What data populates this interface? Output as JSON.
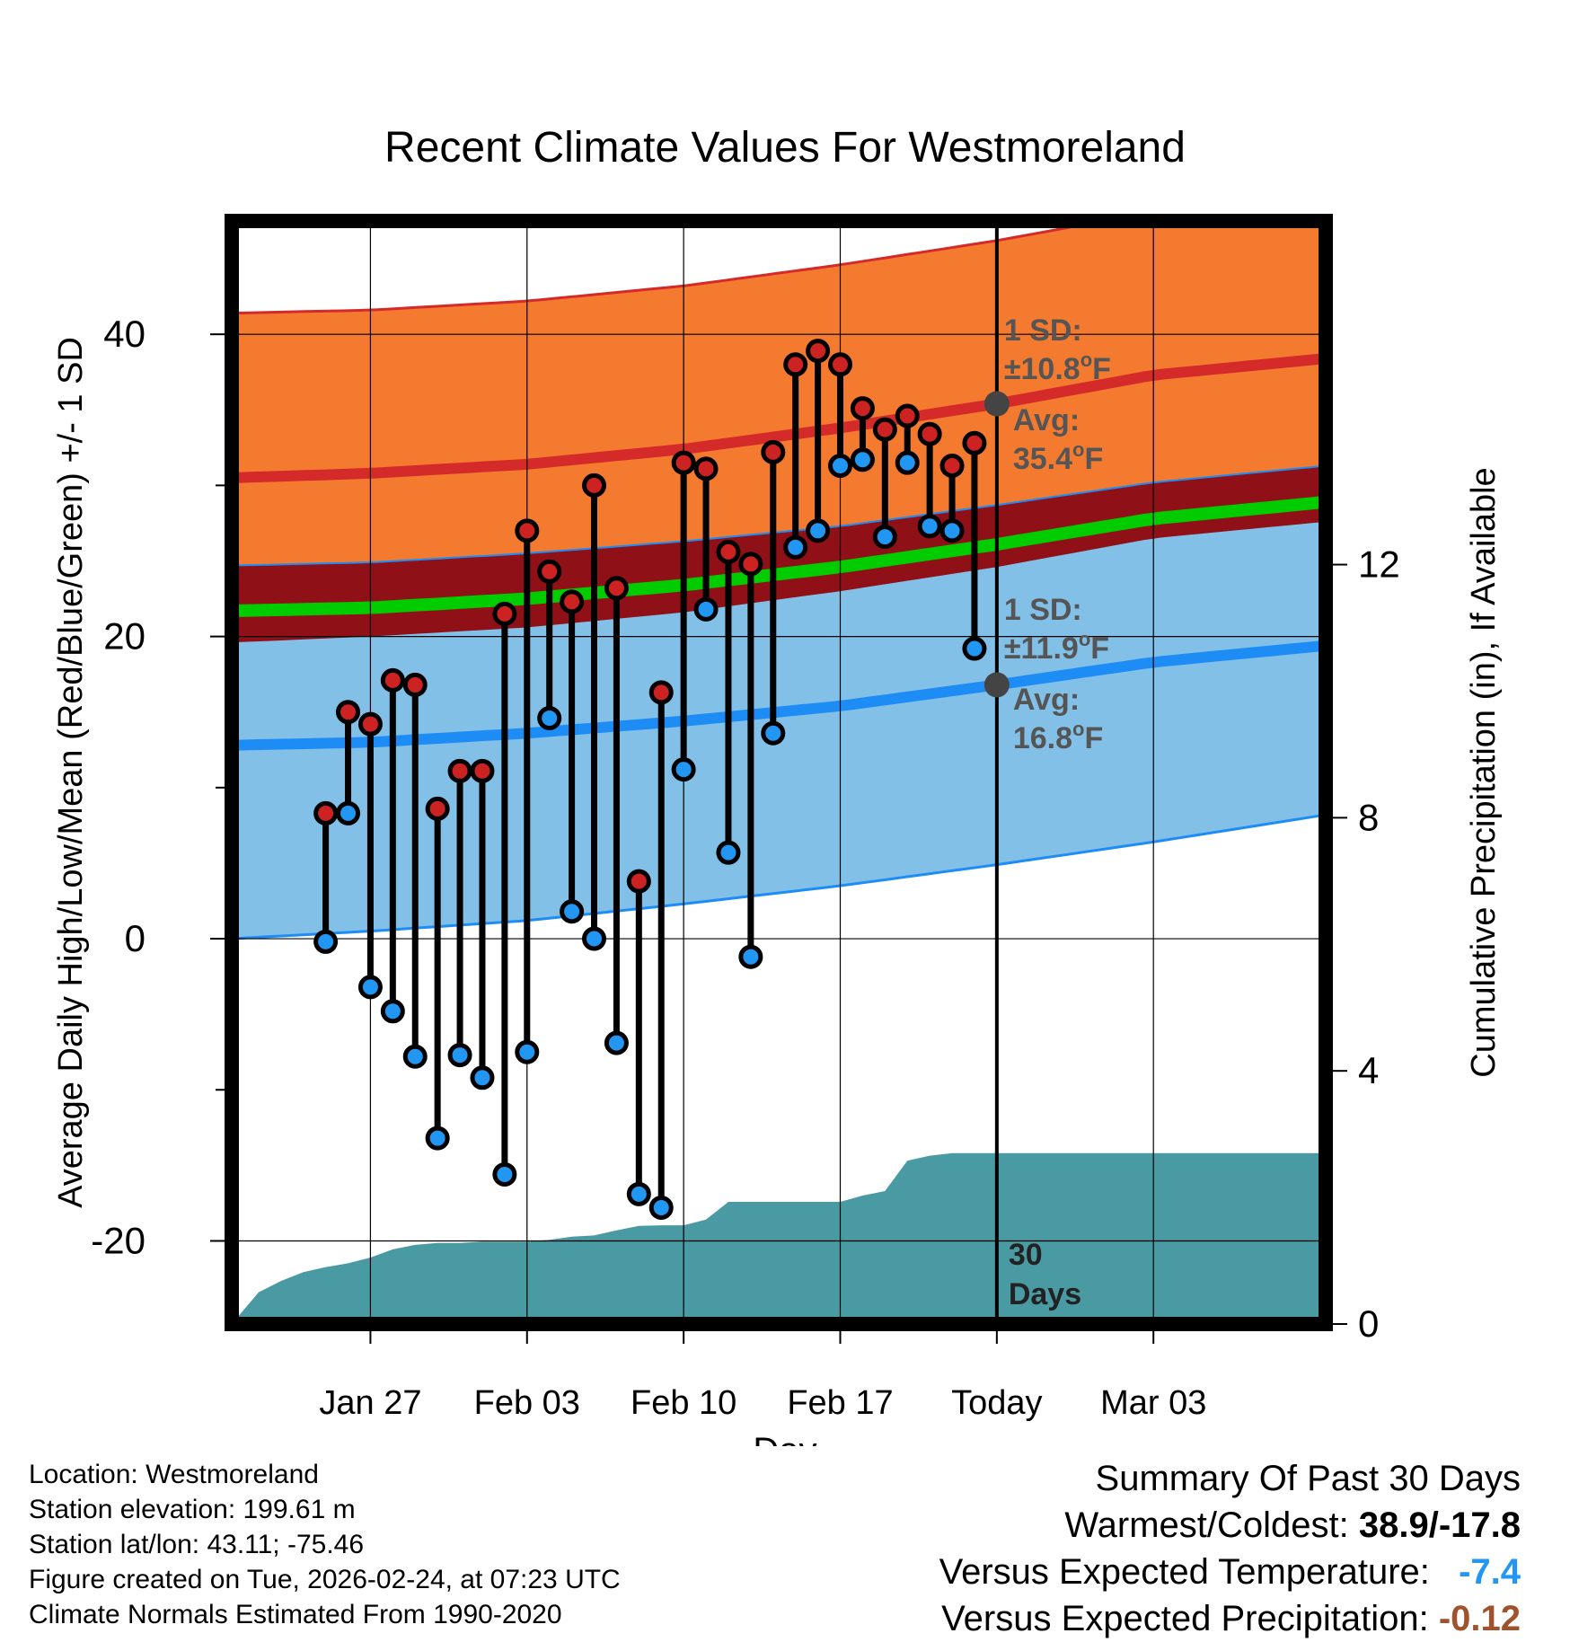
{
  "chart_data": {
    "type": "line",
    "title": "Recent Climate Values For Westmoreland",
    "xlabel": "Day",
    "ylabel_left": "Average Daily High/Low/Mean (Red/Blue/Green) +/- 1 SD",
    "ylabel_right": "Cumulative Precipitation (in), If Available",
    "ylim_left": [
      -25.5,
      47.5
    ],
    "ylim_right": [
      0,
      17.43
    ],
    "x_range_days": [
      -34.2,
      14.7
    ],
    "x_ticks": [
      {
        "day": -28,
        "label": "Jan 27"
      },
      {
        "day": -21,
        "label": "Feb 03"
      },
      {
        "day": -14,
        "label": "Feb 10"
      },
      {
        "day": -7,
        "label": "Feb 17"
      },
      {
        "day": 0,
        "label": "Today"
      },
      {
        "day": 7,
        "label": "Mar 03"
      }
    ],
    "y_ticks_left": [
      {
        "value": 40,
        "label": "40"
      },
      {
        "value": 20,
        "label": "20"
      },
      {
        "value": 0,
        "label": "0"
      },
      {
        "value": -20,
        "label": "-20"
      }
    ],
    "y_minor_ticks_left": [
      30,
      10,
      -10
    ],
    "y_ticks_right": [
      {
        "value": 0,
        "label": "0"
      },
      {
        "value": 4,
        "label": "4"
      },
      {
        "value": 8,
        "label": "8"
      },
      {
        "value": 12,
        "label": "12"
      }
    ],
    "normals": {
      "day": [
        -34.2,
        -28,
        -21,
        -14,
        -7,
        0,
        7,
        14.7
      ],
      "high_avg": [
        30.5,
        30.8,
        31.4,
        32.4,
        33.8,
        35.4,
        37.3,
        38.4
      ],
      "high_sd_upper": [
        41.4,
        41.6,
        42.2,
        43.2,
        44.6,
        46.2,
        48.1,
        49.2
      ],
      "high_sd_lower": [
        19.6,
        20.0,
        20.6,
        21.6,
        23.0,
        24.6,
        26.5,
        27.6
      ],
      "low_avg": [
        12.8,
        13.0,
        13.6,
        14.4,
        15.4,
        16.8,
        18.3,
        19.4
      ],
      "low_sd_upper": [
        24.7,
        24.9,
        25.5,
        26.3,
        27.3,
        28.7,
        30.2,
        31.3
      ],
      "low_sd_lower": [
        0.0,
        0.5,
        1.2,
        2.3,
        3.5,
        4.9,
        6.4,
        8.2
      ],
      "mean_avg": [
        21.7,
        21.9,
        22.5,
        23.4,
        24.6,
        26.1,
        27.8,
        28.9
      ]
    },
    "series": [
      {
        "name": "Daily High",
        "color": "#cc2222",
        "day": [
          -30,
          -29,
          -28,
          -27,
          -26,
          -25,
          -24,
          -23,
          -22,
          -21,
          -20,
          -19,
          -18,
          -17,
          -16,
          -15,
          -14,
          -13,
          -12,
          -11,
          -10,
          -9,
          -8,
          -7,
          -6,
          -5,
          -4,
          -3,
          -2,
          -1
        ],
        "values": [
          8.3,
          15.0,
          14.2,
          17.1,
          16.8,
          8.6,
          11.1,
          11.1,
          21.5,
          27.0,
          24.3,
          22.3,
          30.0,
          23.2,
          3.8,
          16.3,
          31.5,
          31.1,
          25.6,
          24.8,
          32.2,
          38.0,
          38.9,
          38.0,
          35.1,
          33.7,
          34.6,
          33.4,
          31.3,
          32.8
        ]
      },
      {
        "name": "Daily Low",
        "color": "#2196f3",
        "day": [
          -30,
          -29,
          -28,
          -27,
          -26,
          -25,
          -24,
          -23,
          -22,
          -21,
          -20,
          -19,
          -18,
          -17,
          -16,
          -15,
          -14,
          -13,
          -12,
          -11,
          -10,
          -9,
          -8,
          -7,
          -6,
          -5,
          -4,
          -3,
          -2,
          -1
        ],
        "values": [
          -0.2,
          8.3,
          -3.2,
          -4.8,
          -7.8,
          -13.2,
          -7.7,
          -9.2,
          -15.6,
          -7.5,
          14.6,
          1.8,
          0.0,
          -6.9,
          -16.9,
          -17.8,
          11.2,
          21.8,
          5.7,
          -1.2,
          13.6,
          25.9,
          27.0,
          31.3,
          31.7,
          26.6,
          31.5,
          27.3,
          27.0,
          19.2
        ]
      },
      {
        "name": "Cumulative Precipitation",
        "color": "#4a9aa3",
        "axis": "right",
        "day": [
          -34.2,
          -33,
          -32,
          -31,
          -30,
          -29,
          -28,
          -27,
          -26,
          -25,
          -24,
          -23,
          -22,
          -21,
          -20,
          -19,
          -18,
          -17,
          -16,
          -15,
          -14,
          -13,
          -12,
          -11,
          -10,
          -9,
          -8,
          -7,
          -6,
          -5,
          -4,
          -3,
          -2,
          -1,
          0,
          1,
          14.7
        ],
        "values": [
          0.0,
          0.5,
          0.68,
          0.82,
          0.9,
          0.96,
          1.05,
          1.18,
          1.25,
          1.28,
          1.28,
          1.3,
          1.3,
          1.3,
          1.33,
          1.38,
          1.4,
          1.48,
          1.55,
          1.56,
          1.56,
          1.65,
          1.93,
          1.93,
          1.93,
          1.93,
          1.93,
          1.93,
          2.03,
          2.1,
          2.58,
          2.66,
          2.7,
          2.7,
          2.7,
          2.7,
          2.7
        ]
      }
    ],
    "annotations": {
      "high": {
        "line1": "1 SD:",
        "line2_prefix": "±10.8",
        "line2_suffix": "F",
        "avg_label": "Avg:",
        "avg_prefix": "35.4",
        "avg_suffix": "F",
        "degree": "o"
      },
      "low": {
        "line1": "1 SD:",
        "line2_prefix": "±11.9",
        "line2_suffix": "F",
        "avg_label": "Avg:",
        "avg_prefix": "16.8",
        "avg_suffix": "F",
        "degree": "o"
      },
      "period_line1": "30",
      "period_line2": "Days"
    },
    "colors": {
      "high_band": "#f47a2f",
      "high_line": "#d42a2a",
      "low_band": "#82c0e8",
      "low_line": "#1e8cf5",
      "mean_band": "#8f1016",
      "mean_line": "#00cc00",
      "precip": "#4a9aa3",
      "marker_edge": "#000000",
      "annotation": "#555555"
    }
  },
  "info": {
    "location": "Location: Westmoreland",
    "elevation": "Station elevation: 199.61 m",
    "latlon": "Station lat/lon: 43.11; -75.46",
    "created": "Figure created on Tue, 2026-02-24, at 07:23 UTC",
    "normals": "Climate Normals Estimated From 1990-2020"
  },
  "summary": {
    "title": "Summary Of Past 30 Days",
    "warm_cold_label": "Warmest/Coldest:",
    "warm_cold_value": "38.9/-17.8",
    "temp_label": "Versus Expected Temperature:",
    "temp_value": "-7.4",
    "temp_color": "#2196f3",
    "precip_label": "Versus Expected Precipitation:",
    "precip_value": "-0.12",
    "precip_color": "#a0522d"
  }
}
